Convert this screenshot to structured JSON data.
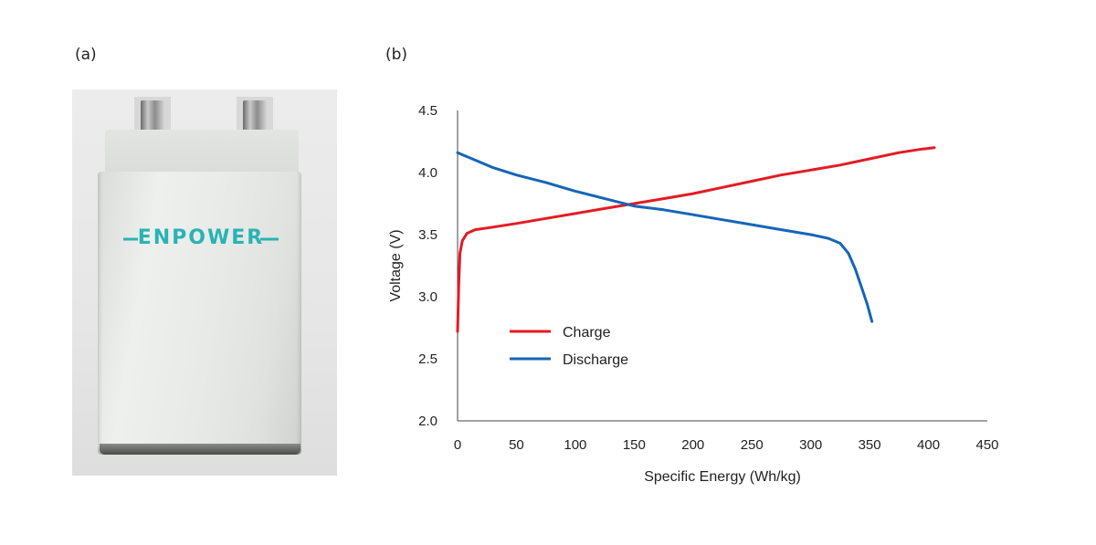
{
  "panels": {
    "a_label": "(a)",
    "b_label": "(b)"
  },
  "photo": {
    "logo_text": "ENPOWER",
    "logo_color": "#2ab3b5"
  },
  "chart_data": {
    "type": "line",
    "xlabel": "Specific Energy (Wh/kg)",
    "ylabel": "Voltage (V)",
    "xlim": [
      0,
      450
    ],
    "ylim": [
      2.0,
      4.5
    ],
    "x_ticks": [
      0,
      50,
      100,
      150,
      200,
      250,
      300,
      350,
      400,
      450
    ],
    "y_ticks": [
      "2.0",
      "2.5",
      "3.0",
      "3.5",
      "4.0",
      "4.5"
    ],
    "grid": false,
    "legend_position": "center-left",
    "series": [
      {
        "name": "Charge",
        "color": "#e31b23",
        "points": [
          [
            0,
            2.72
          ],
          [
            1,
            3.1
          ],
          [
            2,
            3.35
          ],
          [
            4,
            3.45
          ],
          [
            8,
            3.51
          ],
          [
            15,
            3.54
          ],
          [
            30,
            3.56
          ],
          [
            50,
            3.59
          ],
          [
            75,
            3.63
          ],
          [
            100,
            3.67
          ],
          [
            125,
            3.71
          ],
          [
            150,
            3.75
          ],
          [
            175,
            3.79
          ],
          [
            200,
            3.83
          ],
          [
            225,
            3.88
          ],
          [
            250,
            3.93
          ],
          [
            275,
            3.98
          ],
          [
            300,
            4.02
          ],
          [
            325,
            4.06
          ],
          [
            350,
            4.11
          ],
          [
            375,
            4.16
          ],
          [
            395,
            4.19
          ],
          [
            405,
            4.2
          ]
        ]
      },
      {
        "name": "Discharge",
        "color": "#1565b8",
        "points": [
          [
            0,
            4.16
          ],
          [
            5,
            4.14
          ],
          [
            15,
            4.1
          ],
          [
            30,
            4.04
          ],
          [
            50,
            3.98
          ],
          [
            75,
            3.92
          ],
          [
            100,
            3.85
          ],
          [
            125,
            3.79
          ],
          [
            150,
            3.73
          ],
          [
            175,
            3.7
          ],
          [
            200,
            3.66
          ],
          [
            225,
            3.62
          ],
          [
            250,
            3.58
          ],
          [
            275,
            3.54
          ],
          [
            300,
            3.5
          ],
          [
            315,
            3.47
          ],
          [
            325,
            3.43
          ],
          [
            332,
            3.35
          ],
          [
            338,
            3.22
          ],
          [
            343,
            3.08
          ],
          [
            348,
            2.94
          ],
          [
            352,
            2.8
          ]
        ]
      }
    ]
  }
}
